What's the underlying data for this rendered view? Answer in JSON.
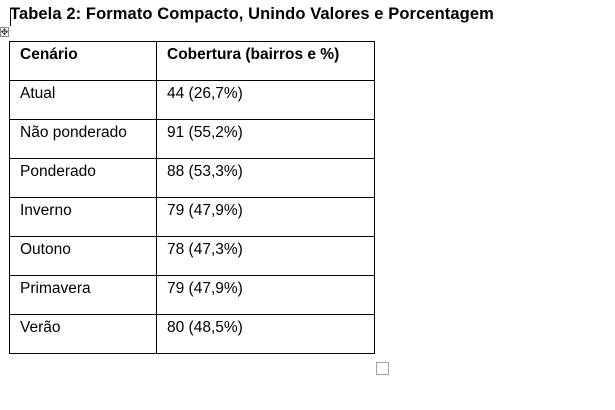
{
  "document": {
    "caption": "Tabela 2: Formato Compacto, Unindo Valores e Porcentagem"
  },
  "table": {
    "headers": [
      "Cenário",
      "Cobertura (bairros e %)"
    ],
    "rows": [
      [
        "Atual",
        "44 (26,7%)"
      ],
      [
        "Não ponderado",
        "91 (55,2%)"
      ],
      [
        "Ponderado",
        "88 (53,3%)"
      ],
      [
        "Inverno",
        "79 (47,9%)"
      ],
      [
        "Outono",
        "78 (47,3%)"
      ],
      [
        "Primavera",
        "79 (47,9%)"
      ],
      [
        "Verão",
        "80 (48,5%)"
      ]
    ]
  },
  "icons": {
    "move_handle": "four-way-arrow-icon",
    "resize_handle": "table-resize-icon"
  }
}
